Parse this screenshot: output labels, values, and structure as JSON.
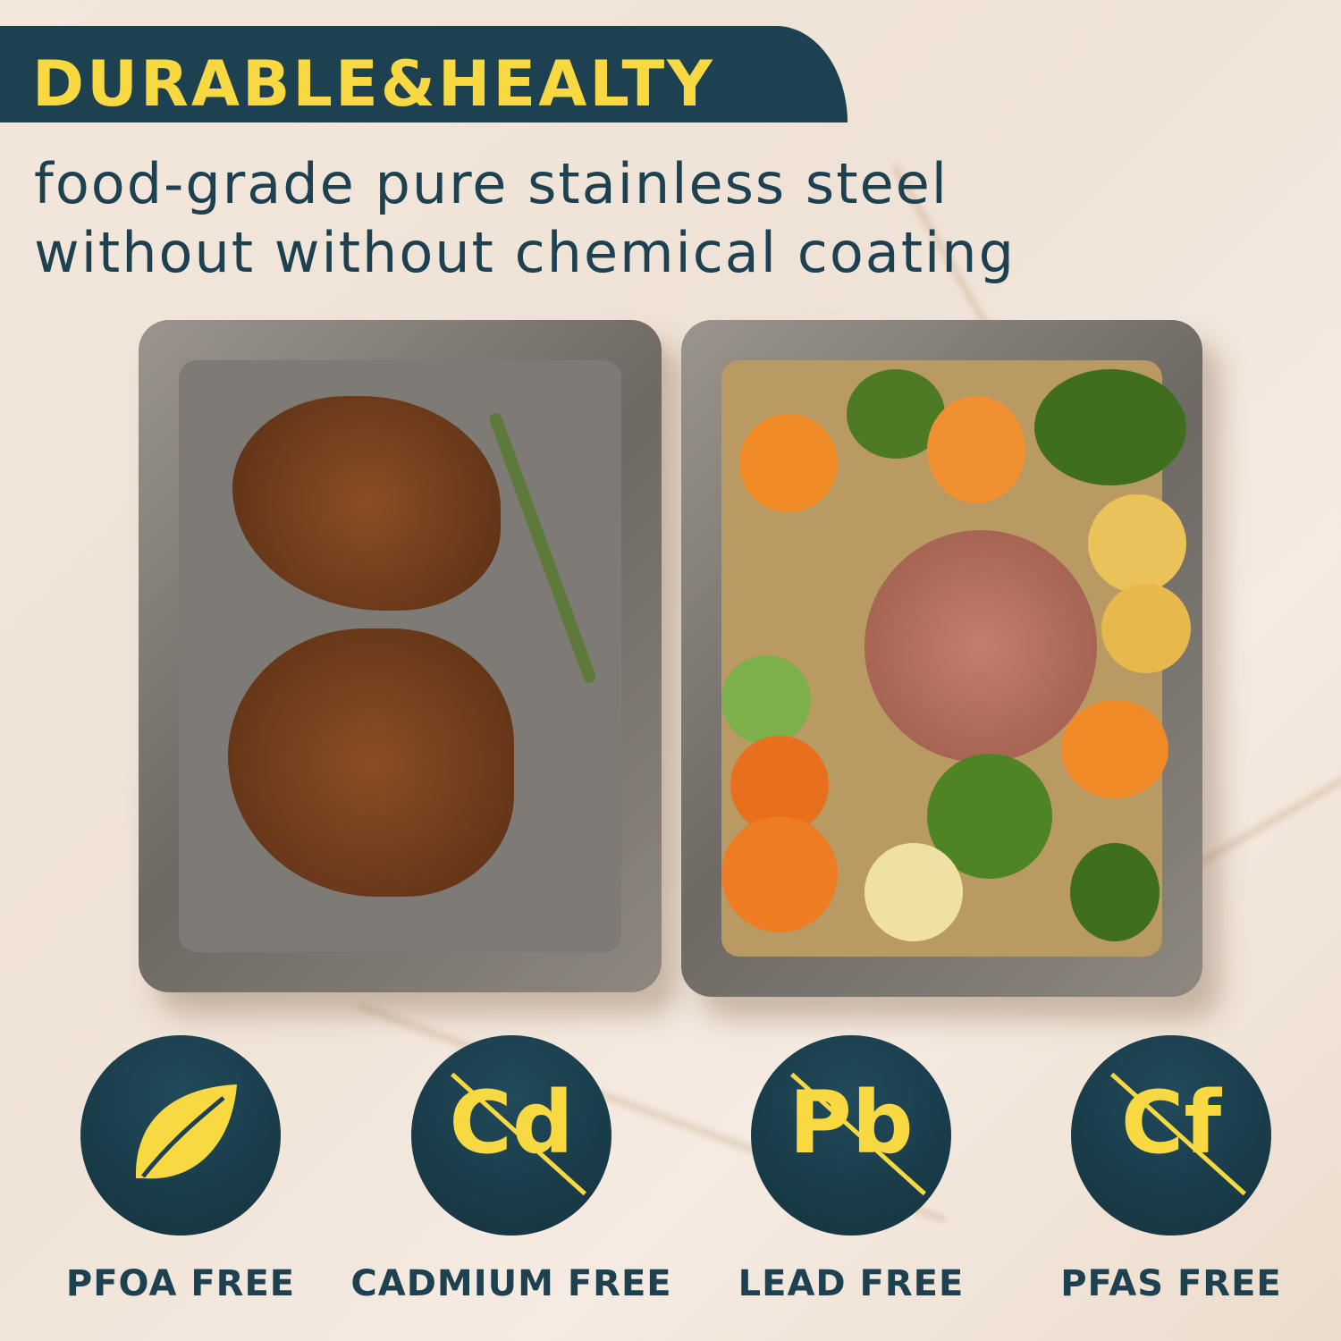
{
  "header": {
    "title": "DURABLE&HEALTY",
    "subtitle_line1": "food-grade pure stainless steel",
    "subtitle_line2": "without without chemical coating"
  },
  "badges": [
    {
      "symbol": "",
      "icon": "leaf-icon",
      "label": "PFOA FREE"
    },
    {
      "symbol": "Cd",
      "icon": "no-cadmium-icon",
      "label": "CADMIUM FREE"
    },
    {
      "symbol": "Pb",
      "icon": "no-lead-icon",
      "label": "LEAD FREE"
    },
    {
      "symbol": "Cf",
      "icon": "no-pfas-icon",
      "label": "PFAS FREE"
    }
  ],
  "colors": {
    "banner": "#1d4150",
    "accent": "#f8d942",
    "text": "#1d4150"
  }
}
